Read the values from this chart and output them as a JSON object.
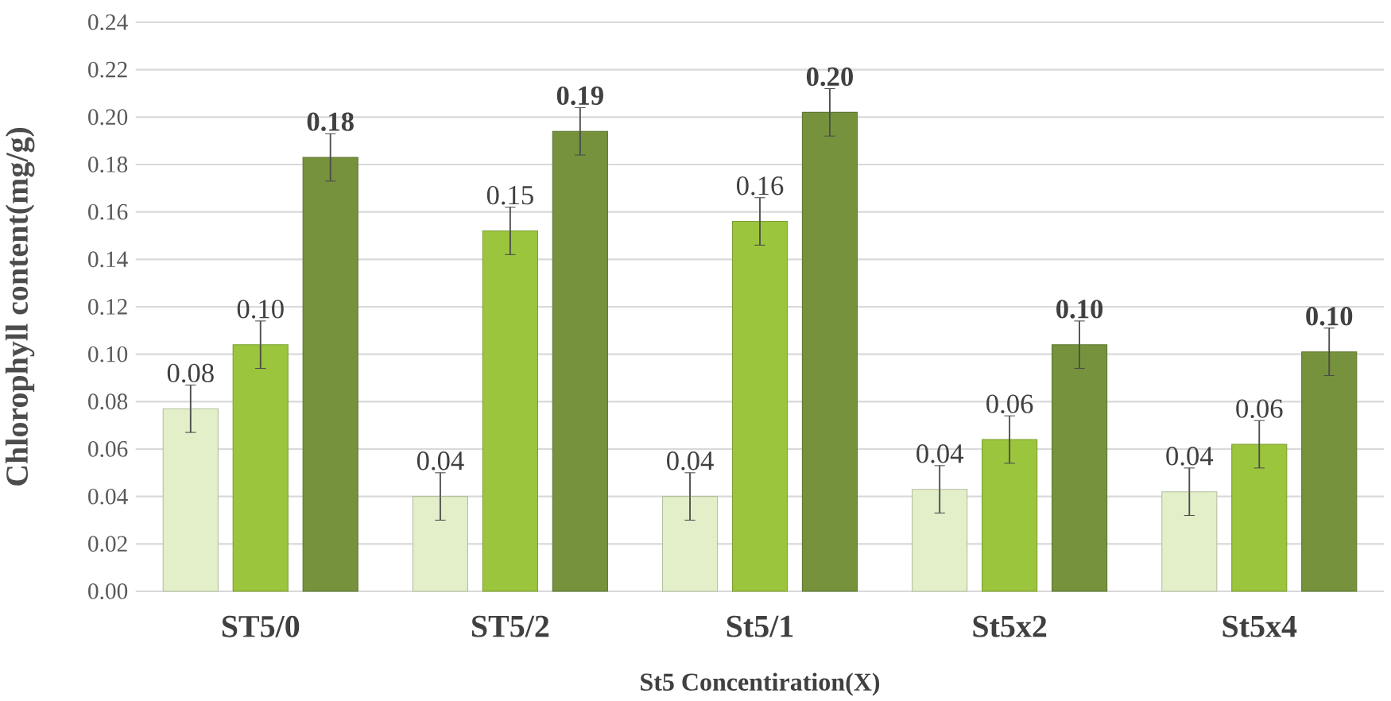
{
  "chart_data": {
    "type": "bar",
    "xlabel": "St5 Concentiration(X)",
    "ylabel": "Chlorophyll content(mg/g)",
    "categories": [
      "ST5/0",
      "ST5/2",
      "St5/1",
      "St5x2",
      "St5x4"
    ],
    "series": [
      {
        "color": "#e2efc9",
        "values": [
          0.077,
          0.04,
          0.04,
          0.043,
          0.042
        ],
        "errors": [
          0.01,
          0.01,
          0.01,
          0.01,
          0.01
        ],
        "value_labels": [
          "0.08",
          "0.04",
          "0.04",
          "0.04",
          "0.04"
        ]
      },
      {
        "color": "#9bc53d",
        "values": [
          0.104,
          0.152,
          0.156,
          0.064,
          0.062
        ],
        "errors": [
          0.01,
          0.01,
          0.01,
          0.01,
          0.01
        ],
        "value_labels": [
          "0.10",
          "0.15",
          "0.16",
          "0.06",
          "0.06"
        ]
      },
      {
        "color": "#76923c",
        "values": [
          0.183,
          0.194,
          0.202,
          0.104,
          0.101
        ],
        "errors": [
          0.01,
          0.01,
          0.01,
          0.01,
          0.01
        ],
        "value_labels": [
          "**0.18**",
          "**0.19**",
          "**0.20**",
          "**0.10**",
          "**0.10**"
        ]
      }
    ],
    "ylim": [
      0,
      0.24
    ],
    "yticks": [
      {
        "value": 0,
        "label": "0.00"
      },
      {
        "value": 0.02,
        "label": "0.02"
      },
      {
        "value": 0.04,
        "label": "0.04"
      },
      {
        "value": 0.06,
        "label": "0.06"
      },
      {
        "value": 0.08,
        "label": "0.08"
      },
      {
        "value": 0.1,
        "label": "0.10"
      },
      {
        "value": 0.12,
        "label": "0.12"
      },
      {
        "value": 0.14,
        "label": "0.14"
      },
      {
        "value": 0.16,
        "label": "0.16"
      },
      {
        "value": 0.18,
        "label": "0.18"
      },
      {
        "value": 0.2,
        "label": "0.20"
      },
      {
        "value": 0.22,
        "label": "0.22"
      },
      {
        "value": 0.24,
        "label": "0.24"
      }
    ],
    "grid": "y"
  }
}
